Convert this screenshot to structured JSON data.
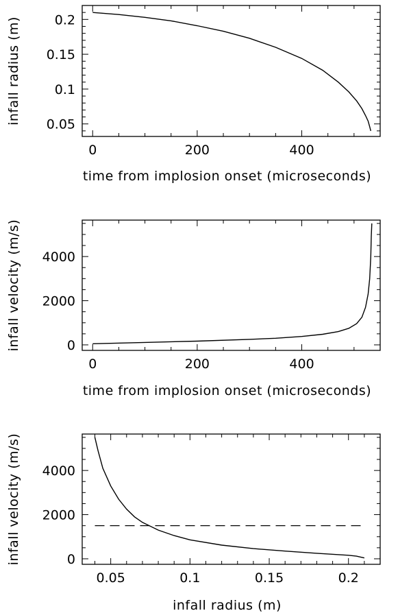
{
  "chart_data": [
    {
      "type": "line",
      "xlabel": "time from implosion onset (microseconds)",
      "ylabel": "infall radius (m)",
      "xlim": [
        -20,
        550
      ],
      "ylim": [
        0.032,
        0.22
      ],
      "xticks": {
        "major": [
          0,
          200,
          400
        ],
        "labels": [
          "0",
          "200",
          "400"
        ],
        "minor_step": 50
      },
      "yticks": {
        "major": [
          0.05,
          0.1,
          0.15,
          0.2
        ],
        "labels": [
          "0.05",
          "0.1",
          "0.15",
          "0.2"
        ],
        "minor_step": 0.01
      },
      "series": [
        {
          "style": "solid",
          "points": [
            [
              0,
              0.21
            ],
            [
              50,
              0.207
            ],
            [
              100,
              0.203
            ],
            [
              150,
              0.198
            ],
            [
              200,
              0.191
            ],
            [
              250,
              0.183
            ],
            [
              300,
              0.173
            ],
            [
              350,
              0.16
            ],
            [
              400,
              0.144
            ],
            [
              440,
              0.127
            ],
            [
              470,
              0.11
            ],
            [
              490,
              0.096
            ],
            [
              505,
              0.083
            ],
            [
              515,
              0.072
            ],
            [
              522,
              0.062
            ],
            [
              527,
              0.054
            ],
            [
              530,
              0.046
            ],
            [
              532,
              0.04
            ]
          ]
        }
      ]
    },
    {
      "type": "line",
      "xlabel": "time from implosion onset (microseconds)",
      "ylabel": "infall velocity (m/s)",
      "xlim": [
        -20,
        550
      ],
      "ylim": [
        -250,
        5650
      ],
      "xticks": {
        "major": [
          0,
          200,
          400
        ],
        "labels": [
          "0",
          "200",
          "400"
        ],
        "minor_step": 50
      },
      "yticks": {
        "major": [
          0,
          2000,
          4000
        ],
        "labels": [
          "0",
          "2000",
          "4000"
        ],
        "minor_step": 500
      },
      "series": [
        {
          "style": "solid",
          "points": [
            [
              0,
              50
            ],
            [
              100,
              110
            ],
            [
              200,
              170
            ],
            [
              300,
              250
            ],
            [
              350,
              300
            ],
            [
              400,
              380
            ],
            [
              440,
              480
            ],
            [
              470,
              600
            ],
            [
              490,
              750
            ],
            [
              505,
              960
            ],
            [
              515,
              1250
            ],
            [
              522,
              1700
            ],
            [
              527,
              2300
            ],
            [
              530,
              3000
            ],
            [
              532,
              4000
            ],
            [
              533,
              4900
            ],
            [
              534,
              5500
            ]
          ]
        }
      ]
    },
    {
      "type": "line",
      "xlabel": "infall radius (m)",
      "ylabel": "infall velocity (m/s)",
      "xlim": [
        0.032,
        0.22
      ],
      "ylim": [
        -250,
        5650
      ],
      "xticks": {
        "major": [
          0.05,
          0.1,
          0.15,
          0.2
        ],
        "labels": [
          "0.05",
          "0.1",
          "0.15",
          "0.2"
        ],
        "minor_step": 0.01
      },
      "yticks": {
        "major": [
          0,
          2000,
          4000
        ],
        "labels": [
          "0",
          "2000",
          "4000"
        ],
        "minor_step": 500
      },
      "series": [
        {
          "style": "solid",
          "points": [
            [
              0.04,
              5500
            ],
            [
              0.042,
              4900
            ],
            [
              0.045,
              4100
            ],
            [
              0.05,
              3300
            ],
            [
              0.055,
              2700
            ],
            [
              0.06,
              2250
            ],
            [
              0.065,
              1900
            ],
            [
              0.07,
              1650
            ],
            [
              0.08,
              1300
            ],
            [
              0.09,
              1050
            ],
            [
              0.1,
              860
            ],
            [
              0.12,
              620
            ],
            [
              0.14,
              460
            ],
            [
              0.16,
              350
            ],
            [
              0.18,
              250
            ],
            [
              0.2,
              160
            ],
            [
              0.205,
              120
            ],
            [
              0.21,
              40
            ]
          ]
        },
        {
          "style": "dashed",
          "points": [
            [
              0.04,
              1500
            ],
            [
              0.21,
              1500
            ]
          ]
        }
      ]
    }
  ]
}
